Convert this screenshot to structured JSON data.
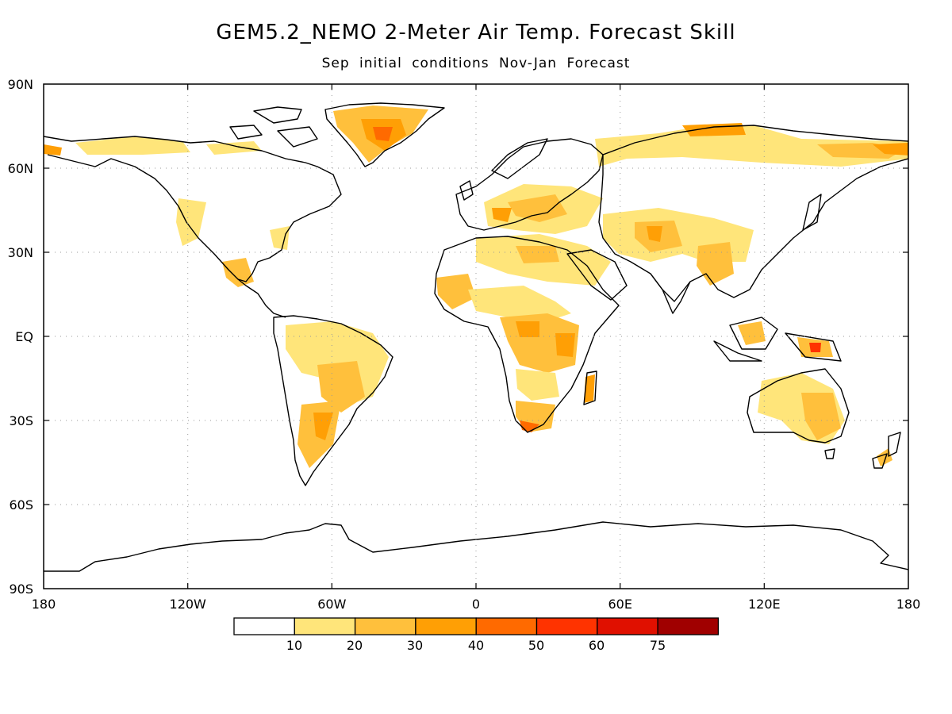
{
  "title": "GEM5.2_NEMO 2-Meter Air Temp. Forecast Skill",
  "subtitle": "Sep initial conditions   Nov-Jan Forecast",
  "map": {
    "lat_labels": [
      "90N",
      "60N",
      "30N",
      "EQ",
      "30S",
      "60S",
      "90S"
    ],
    "lon_labels": [
      "180",
      "120W",
      "60W",
      "0",
      "60E",
      "120E",
      "180"
    ],
    "grid": "dotted",
    "projection": "equirectangular"
  },
  "colorbar": {
    "labels": [
      "10",
      "20",
      "30",
      "40",
      "50",
      "60",
      "75"
    ],
    "colors": [
      "#ffffff",
      "#ffe57a",
      "#ffc03c",
      "#ff9f05",
      "#ff6a00",
      "#ff3300",
      "#e01000",
      "#a00000"
    ]
  }
}
